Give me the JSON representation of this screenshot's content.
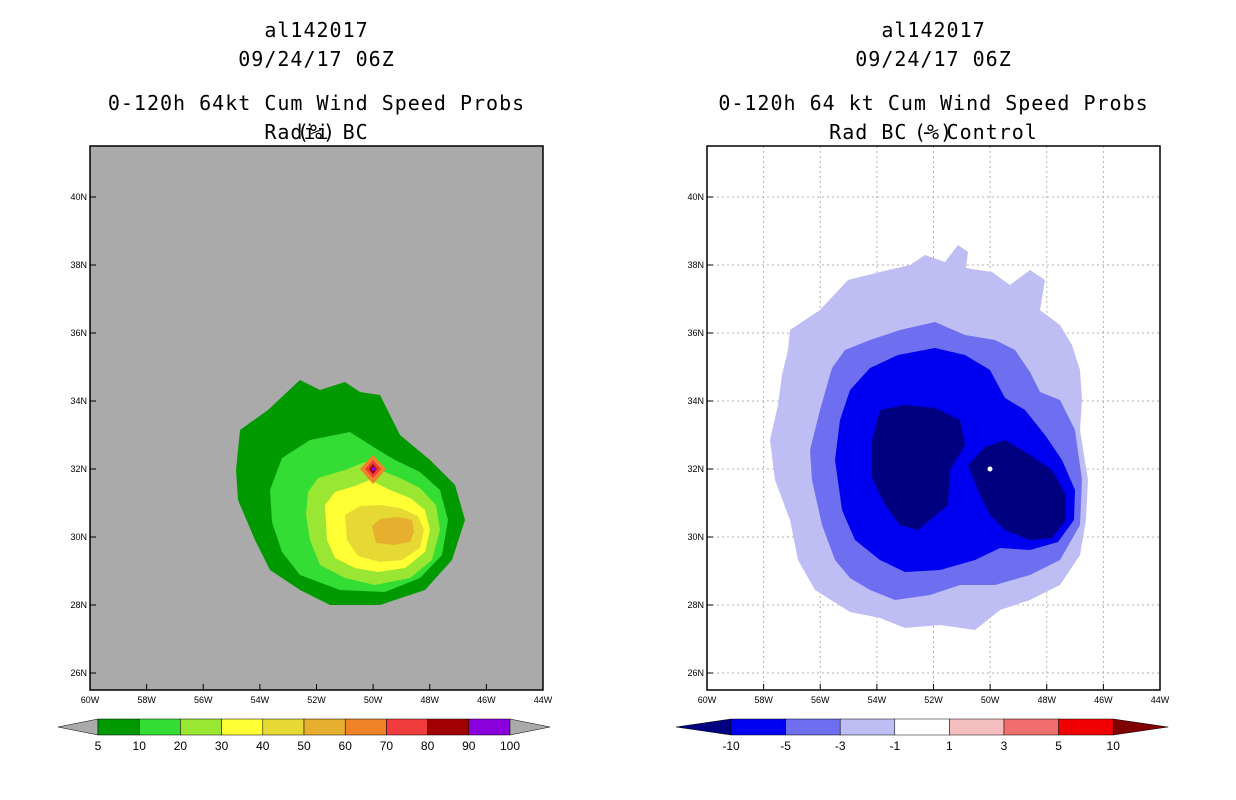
{
  "left_panel": {
    "storm_id": "al142017",
    "datetime": "09/24/17 06Z",
    "title": "0-120h 64kt Cum Wind Speed Probs (%)",
    "subtitle": "Radii BC",
    "x_ticks": [
      "60W",
      "58W",
      "56W",
      "54W",
      "52W",
      "50W",
      "48W",
      "46W",
      "44W"
    ],
    "y_ticks": [
      "26N",
      "28N",
      "30N",
      "32N",
      "34N",
      "36N",
      "38N",
      "40N"
    ],
    "colorbar": {
      "labels": [
        "5",
        "10",
        "20",
        "30",
        "40",
        "50",
        "60",
        "70",
        "80",
        "90",
        "100"
      ],
      "colors": [
        "#009900",
        "#33dd33",
        "#99e633",
        "#ffff33",
        "#e6d933",
        "#e6af2e",
        "#f08228",
        "#f03c3c",
        "#a00000",
        "#8a00dc"
      ]
    }
  },
  "right_panel": {
    "storm_id": "al142017",
    "datetime": "09/24/17 06Z",
    "title": "0-120h 64 kt Cum Wind Speed Probs (%)",
    "subtitle": "Rad BC - Control",
    "x_ticks": [
      "60W",
      "58W",
      "56W",
      "54W",
      "52W",
      "50W",
      "48W",
      "46W",
      "44W"
    ],
    "y_ticks": [
      "26N",
      "28N",
      "30N",
      "32N",
      "34N",
      "36N",
      "38N",
      "40N"
    ],
    "colorbar": {
      "labels": [
        "-10",
        "-5",
        "-3",
        "-1",
        "1",
        "3",
        "5",
        "10"
      ],
      "colors": [
        "#000080",
        "#0000f0",
        "#6e6ef0",
        "#bebef5",
        "#ffffff",
        "#f5bebe",
        "#f06e6e",
        "#f00000",
        "#800000"
      ]
    }
  },
  "map_extent": {
    "lon_min": -60,
    "lon_max": -44,
    "lat_min": 25.5,
    "lat_max": 41.5
  },
  "legend_colors": {
    "background_gray": "#aaaaaa"
  }
}
